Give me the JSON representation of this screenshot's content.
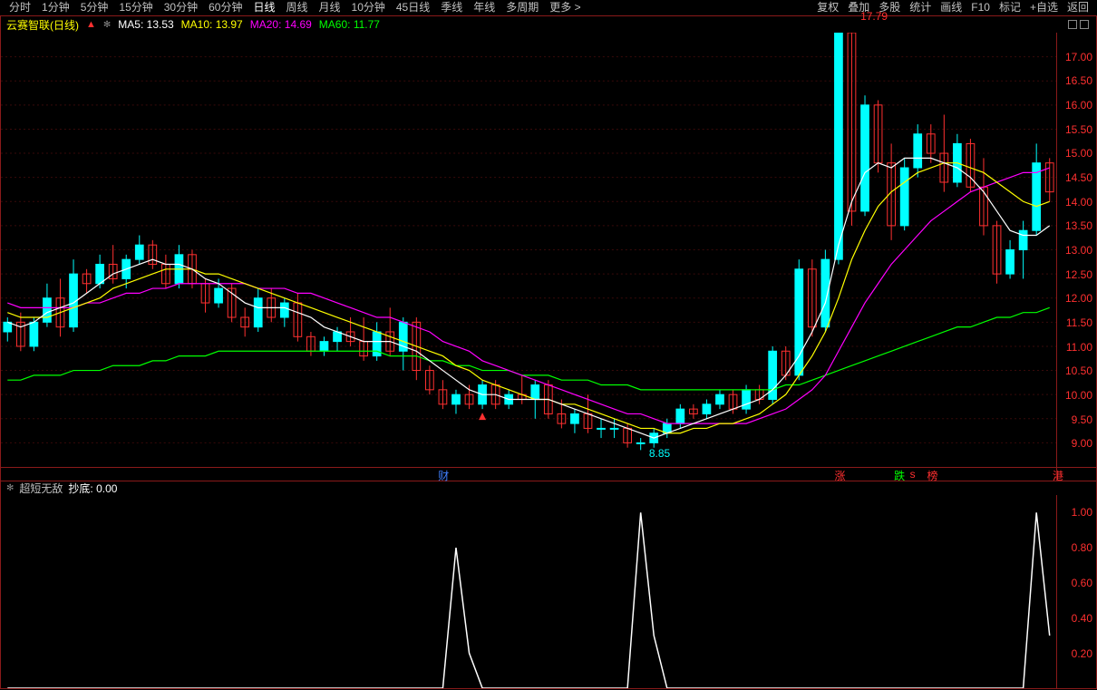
{
  "timeframes": {
    "items": [
      "分时",
      "1分钟",
      "5分钟",
      "15分钟",
      "30分钟",
      "60分钟",
      "日线",
      "周线",
      "月线",
      "10分钟",
      "45日线",
      "季线",
      "年线",
      "多周期",
      "更多 >"
    ],
    "active": "日线"
  },
  "tools": [
    "复权",
    "叠加",
    "多股",
    "统计",
    "画线",
    "F10",
    "标记",
    "+自选",
    "返回"
  ],
  "title": {
    "stock": "云赛智联(日线)",
    "ma5_label": "MA5:",
    "ma5_val": "13.53",
    "ma10_label": "MA10:",
    "ma10_val": "13.97",
    "ma20_label": "MA20:",
    "ma20_val": "14.69",
    "ma60_label": "MA60:",
    "ma60_val": "11.77"
  },
  "chart": {
    "ylim": [
      8.5,
      17.5
    ],
    "yticks": [
      9.0,
      9.5,
      10.0,
      10.5,
      11.0,
      11.5,
      12.0,
      12.5,
      13.0,
      13.5,
      14.0,
      14.5,
      15.0,
      15.5,
      16.0,
      16.5,
      17.0
    ],
    "peak_label": "17.79",
    "low_label": "8.85",
    "grid_color": "#3a0a0a",
    "up_color": "#00ffff",
    "dn_color": "#ff3030",
    "ma5_color": "#ffffff",
    "ma10_color": "#ffff00",
    "ma20_color": "#ff00ff",
    "ma60_color": "#00ff00",
    "candles": [
      {
        "o": 11.3,
        "h": 11.6,
        "l": 11.1,
        "c": 11.5,
        "u": 1
      },
      {
        "o": 11.5,
        "h": 11.7,
        "l": 10.9,
        "c": 11.0,
        "u": 0
      },
      {
        "o": 11.0,
        "h": 11.6,
        "l": 10.9,
        "c": 11.5,
        "u": 1
      },
      {
        "o": 11.5,
        "h": 12.3,
        "l": 11.4,
        "c": 12.0,
        "u": 1
      },
      {
        "o": 12.0,
        "h": 12.4,
        "l": 11.2,
        "c": 11.4,
        "u": 0
      },
      {
        "o": 11.4,
        "h": 12.8,
        "l": 11.3,
        "c": 12.5,
        "u": 1
      },
      {
        "o": 12.5,
        "h": 12.6,
        "l": 12.1,
        "c": 12.3,
        "u": 0
      },
      {
        "o": 12.3,
        "h": 12.9,
        "l": 12.2,
        "c": 12.7,
        "u": 1
      },
      {
        "o": 12.7,
        "h": 13.1,
        "l": 12.3,
        "c": 12.4,
        "u": 0
      },
      {
        "o": 12.4,
        "h": 12.9,
        "l": 12.2,
        "c": 12.8,
        "u": 1
      },
      {
        "o": 12.8,
        "h": 13.3,
        "l": 12.7,
        "c": 13.1,
        "u": 1
      },
      {
        "o": 13.1,
        "h": 13.2,
        "l": 12.6,
        "c": 12.7,
        "u": 0
      },
      {
        "o": 12.7,
        "h": 12.9,
        "l": 12.2,
        "c": 12.3,
        "u": 0
      },
      {
        "o": 12.3,
        "h": 13.1,
        "l": 12.2,
        "c": 12.9,
        "u": 1
      },
      {
        "o": 12.9,
        "h": 13.0,
        "l": 12.2,
        "c": 12.3,
        "u": 0
      },
      {
        "o": 12.3,
        "h": 12.4,
        "l": 11.7,
        "c": 11.9,
        "u": 0
      },
      {
        "o": 11.9,
        "h": 12.4,
        "l": 11.8,
        "c": 12.2,
        "u": 1
      },
      {
        "o": 12.2,
        "h": 12.3,
        "l": 11.5,
        "c": 11.6,
        "u": 0
      },
      {
        "o": 11.6,
        "h": 11.8,
        "l": 11.2,
        "c": 11.4,
        "u": 0
      },
      {
        "o": 11.4,
        "h": 12.2,
        "l": 11.3,
        "c": 12.0,
        "u": 1
      },
      {
        "o": 12.0,
        "h": 12.2,
        "l": 11.5,
        "c": 11.6,
        "u": 0
      },
      {
        "o": 11.6,
        "h": 12.0,
        "l": 11.4,
        "c": 11.9,
        "u": 1
      },
      {
        "o": 11.9,
        "h": 12.1,
        "l": 11.1,
        "c": 11.2,
        "u": 0
      },
      {
        "o": 11.2,
        "h": 11.3,
        "l": 10.8,
        "c": 10.9,
        "u": 0
      },
      {
        "o": 10.9,
        "h": 11.2,
        "l": 10.8,
        "c": 11.1,
        "u": 1
      },
      {
        "o": 11.1,
        "h": 11.4,
        "l": 10.9,
        "c": 11.3,
        "u": 1
      },
      {
        "o": 11.3,
        "h": 11.6,
        "l": 11.0,
        "c": 11.1,
        "u": 0
      },
      {
        "o": 11.1,
        "h": 11.6,
        "l": 10.7,
        "c": 10.8,
        "u": 0
      },
      {
        "o": 10.8,
        "h": 11.5,
        "l": 10.7,
        "c": 11.3,
        "u": 1
      },
      {
        "o": 11.3,
        "h": 11.8,
        "l": 10.8,
        "c": 10.9,
        "u": 0
      },
      {
        "o": 10.9,
        "h": 11.6,
        "l": 10.5,
        "c": 11.5,
        "u": 1
      },
      {
        "o": 11.5,
        "h": 11.6,
        "l": 10.3,
        "c": 10.5,
        "u": 0
      },
      {
        "o": 10.5,
        "h": 10.6,
        "l": 10.0,
        "c": 10.1,
        "u": 0
      },
      {
        "o": 10.1,
        "h": 10.3,
        "l": 9.7,
        "c": 9.8,
        "u": 0
      },
      {
        "o": 9.8,
        "h": 10.1,
        "l": 9.6,
        "c": 10.0,
        "u": 1
      },
      {
        "o": 10.0,
        "h": 10.2,
        "l": 9.7,
        "c": 9.8,
        "u": 0
      },
      {
        "o": 9.8,
        "h": 10.3,
        "l": 9.7,
        "c": 10.2,
        "u": 1
      },
      {
        "o": 10.2,
        "h": 10.3,
        "l": 9.7,
        "c": 9.8,
        "u": 0
      },
      {
        "o": 9.8,
        "h": 10.1,
        "l": 9.7,
        "c": 10.0,
        "u": 1
      },
      {
        "o": 10.0,
        "h": 10.4,
        "l": 9.8,
        "c": 9.9,
        "u": 0
      },
      {
        "o": 9.9,
        "h": 10.3,
        "l": 9.5,
        "c": 10.2,
        "u": 1
      },
      {
        "o": 10.2,
        "h": 10.3,
        "l": 9.5,
        "c": 9.6,
        "u": 0
      },
      {
        "o": 9.6,
        "h": 9.9,
        "l": 9.3,
        "c": 9.4,
        "u": 0
      },
      {
        "o": 9.4,
        "h": 9.7,
        "l": 9.2,
        "c": 9.6,
        "u": 1
      },
      {
        "o": 9.6,
        "h": 10.0,
        "l": 9.2,
        "c": 9.3,
        "u": 0
      },
      {
        "o": 9.3,
        "h": 9.5,
        "l": 9.1,
        "c": 9.3,
        "u": 1
      },
      {
        "o": 9.3,
        "h": 9.5,
        "l": 9.1,
        "c": 9.3,
        "u": 1
      },
      {
        "o": 9.3,
        "h": 9.4,
        "l": 8.9,
        "c": 9.0,
        "u": 0
      },
      {
        "o": 9.0,
        "h": 9.1,
        "l": 8.85,
        "c": 9.0,
        "u": 1
      },
      {
        "o": 9.0,
        "h": 9.3,
        "l": 8.9,
        "c": 9.2,
        "u": 1
      },
      {
        "o": 9.2,
        "h": 9.5,
        "l": 9.1,
        "c": 9.4,
        "u": 1
      },
      {
        "o": 9.4,
        "h": 9.8,
        "l": 9.3,
        "c": 9.7,
        "u": 1
      },
      {
        "o": 9.7,
        "h": 9.8,
        "l": 9.5,
        "c": 9.6,
        "u": 0
      },
      {
        "o": 9.6,
        "h": 9.9,
        "l": 9.5,
        "c": 9.8,
        "u": 1
      },
      {
        "o": 9.8,
        "h": 10.1,
        "l": 9.7,
        "c": 10.0,
        "u": 1
      },
      {
        "o": 10.0,
        "h": 10.1,
        "l": 9.6,
        "c": 9.7,
        "u": 0
      },
      {
        "o": 9.7,
        "h": 10.2,
        "l": 9.6,
        "c": 10.1,
        "u": 1
      },
      {
        "o": 10.1,
        "h": 10.2,
        "l": 9.8,
        "c": 9.9,
        "u": 0
      },
      {
        "o": 9.9,
        "h": 11.0,
        "l": 9.8,
        "c": 10.9,
        "u": 1
      },
      {
        "o": 10.9,
        "h": 11.0,
        "l": 10.3,
        "c": 10.4,
        "u": 0
      },
      {
        "o": 10.4,
        "h": 12.8,
        "l": 10.3,
        "c": 12.6,
        "u": 1
      },
      {
        "o": 12.6,
        "h": 12.8,
        "l": 11.2,
        "c": 11.4,
        "u": 0
      },
      {
        "o": 11.4,
        "h": 13.0,
        "l": 11.3,
        "c": 12.8,
        "u": 1
      },
      {
        "o": 12.8,
        "h": 17.7,
        "l": 12.7,
        "c": 17.5,
        "u": 1
      },
      {
        "o": 17.5,
        "h": 17.79,
        "l": 13.5,
        "c": 13.8,
        "u": 0
      },
      {
        "o": 13.8,
        "h": 16.2,
        "l": 13.7,
        "c": 16.0,
        "u": 1
      },
      {
        "o": 16.0,
        "h": 16.1,
        "l": 14.6,
        "c": 14.8,
        "u": 0
      },
      {
        "o": 14.8,
        "h": 15.2,
        "l": 13.2,
        "c": 13.5,
        "u": 0
      },
      {
        "o": 13.5,
        "h": 14.9,
        "l": 13.4,
        "c": 14.7,
        "u": 1
      },
      {
        "o": 14.7,
        "h": 15.6,
        "l": 14.5,
        "c": 15.4,
        "u": 1
      },
      {
        "o": 15.4,
        "h": 15.6,
        "l": 14.8,
        "c": 15.0,
        "u": 0
      },
      {
        "o": 15.0,
        "h": 15.8,
        "l": 14.2,
        "c": 14.4,
        "u": 0
      },
      {
        "o": 14.4,
        "h": 15.4,
        "l": 14.3,
        "c": 15.2,
        "u": 1
      },
      {
        "o": 15.2,
        "h": 15.3,
        "l": 14.2,
        "c": 14.3,
        "u": 0
      },
      {
        "o": 14.3,
        "h": 14.9,
        "l": 13.3,
        "c": 13.5,
        "u": 0
      },
      {
        "o": 13.5,
        "h": 13.6,
        "l": 12.3,
        "c": 12.5,
        "u": 0
      },
      {
        "o": 12.5,
        "h": 13.2,
        "l": 12.4,
        "c": 13.0,
        "u": 1
      },
      {
        "o": 13.0,
        "h": 13.6,
        "l": 12.4,
        "c": 13.4,
        "u": 1
      },
      {
        "o": 13.4,
        "h": 15.2,
        "l": 13.3,
        "c": 14.8,
        "u": 1
      },
      {
        "o": 14.8,
        "h": 14.9,
        "l": 14.0,
        "c": 14.2,
        "u": 0
      }
    ],
    "ma5": [
      11.5,
      11.4,
      11.5,
      11.7,
      11.8,
      11.9,
      12.1,
      12.3,
      12.5,
      12.6,
      12.7,
      12.8,
      12.7,
      12.7,
      12.6,
      12.4,
      12.3,
      12.1,
      11.9,
      11.8,
      11.8,
      11.8,
      11.7,
      11.6,
      11.4,
      11.3,
      11.2,
      11.1,
      11.1,
      11.1,
      11.0,
      10.9,
      10.7,
      10.5,
      10.3,
      10.1,
      10.0,
      10.0,
      9.9,
      9.9,
      9.9,
      9.9,
      9.8,
      9.7,
      9.6,
      9.5,
      9.4,
      9.3,
      9.2,
      9.1,
      9.2,
      9.3,
      9.4,
      9.5,
      9.6,
      9.7,
      9.8,
      9.9,
      10.1,
      10.4,
      10.8,
      11.3,
      11.9,
      13.1,
      14.0,
      14.6,
      14.8,
      14.7,
      14.9,
      14.9,
      14.9,
      14.8,
      14.7,
      14.5,
      14.2,
      13.8,
      13.4,
      13.3,
      13.3,
      13.5
    ],
    "ma10": [
      11.7,
      11.6,
      11.6,
      11.6,
      11.7,
      11.8,
      11.9,
      12.0,
      12.2,
      12.3,
      12.4,
      12.5,
      12.6,
      12.6,
      12.6,
      12.5,
      12.5,
      12.4,
      12.3,
      12.2,
      12.1,
      12.0,
      11.9,
      11.8,
      11.7,
      11.6,
      11.5,
      11.4,
      11.3,
      11.2,
      11.1,
      11.0,
      10.9,
      10.8,
      10.6,
      10.5,
      10.3,
      10.2,
      10.1,
      10.0,
      9.9,
      9.9,
      9.8,
      9.8,
      9.7,
      9.6,
      9.5,
      9.4,
      9.3,
      9.3,
      9.2,
      9.2,
      9.3,
      9.3,
      9.4,
      9.4,
      9.5,
      9.6,
      9.8,
      10.0,
      10.4,
      10.8,
      11.3,
      12.0,
      12.8,
      13.4,
      13.9,
      14.2,
      14.4,
      14.6,
      14.7,
      14.8,
      14.8,
      14.7,
      14.6,
      14.4,
      14.2,
      14.0,
      13.9,
      14.0
    ],
    "ma20": [
      11.9,
      11.8,
      11.8,
      11.8,
      11.8,
      11.8,
      11.9,
      11.9,
      12.0,
      12.1,
      12.1,
      12.2,
      12.2,
      12.3,
      12.3,
      12.3,
      12.3,
      12.3,
      12.3,
      12.2,
      12.2,
      12.2,
      12.1,
      12.1,
      12.0,
      11.9,
      11.8,
      11.7,
      11.6,
      11.6,
      11.5,
      11.4,
      11.3,
      11.1,
      11.0,
      10.9,
      10.7,
      10.6,
      10.5,
      10.4,
      10.3,
      10.2,
      10.1,
      10.0,
      9.9,
      9.8,
      9.7,
      9.6,
      9.6,
      9.5,
      9.4,
      9.4,
      9.4,
      9.4,
      9.4,
      9.4,
      9.4,
      9.5,
      9.6,
      9.7,
      9.9,
      10.1,
      10.4,
      10.9,
      11.4,
      11.9,
      12.3,
      12.7,
      13.0,
      13.3,
      13.6,
      13.8,
      14.0,
      14.2,
      14.3,
      14.4,
      14.5,
      14.6,
      14.6,
      14.7
    ],
    "ma60": [
      10.3,
      10.3,
      10.4,
      10.4,
      10.4,
      10.5,
      10.5,
      10.5,
      10.6,
      10.6,
      10.6,
      10.7,
      10.7,
      10.8,
      10.8,
      10.8,
      10.9,
      10.9,
      10.9,
      10.9,
      10.9,
      10.9,
      10.9,
      10.9,
      10.9,
      10.9,
      10.9,
      10.9,
      10.9,
      10.8,
      10.8,
      10.8,
      10.7,
      10.7,
      10.6,
      10.6,
      10.5,
      10.5,
      10.5,
      10.4,
      10.4,
      10.4,
      10.3,
      10.3,
      10.3,
      10.2,
      10.2,
      10.2,
      10.1,
      10.1,
      10.1,
      10.1,
      10.1,
      10.1,
      10.1,
      10.1,
      10.1,
      10.1,
      10.1,
      10.2,
      10.2,
      10.3,
      10.4,
      10.5,
      10.6,
      10.7,
      10.8,
      10.9,
      11.0,
      11.1,
      11.2,
      11.3,
      11.4,
      11.4,
      11.5,
      11.6,
      11.6,
      11.7,
      11.7,
      11.8
    ]
  },
  "markers": [
    {
      "x": 33,
      "text": "财",
      "color": "#4080ff"
    },
    {
      "x": 63,
      "text": "涨",
      "color": "#ff3030"
    },
    {
      "x": 67.5,
      "text": "跌",
      "color": "#00ff00"
    },
    {
      "x": 68.5,
      "text": "s",
      "color": "#ff3030"
    },
    {
      "x": 70,
      "text": "榜",
      "color": "#ff3030"
    },
    {
      "x": 79.5,
      "text": "港",
      "color": "#ff3030"
    }
  ],
  "indicator": {
    "title_a": "超短无敌",
    "title_b": "抄底:",
    "title_val": "0.00",
    "ylim": [
      0,
      1.1
    ],
    "yticks": [
      0.2,
      0.4,
      0.6,
      0.8,
      1.0
    ],
    "series": [
      0,
      0,
      0,
      0,
      0,
      0,
      0,
      0,
      0,
      0,
      0,
      0,
      0,
      0,
      0,
      0,
      0,
      0,
      0,
      0,
      0,
      0,
      0,
      0,
      0,
      0,
      0,
      0,
      0,
      0,
      0,
      0,
      0,
      0,
      0.8,
      0.2,
      0,
      0,
      0,
      0,
      0,
      0,
      0,
      0,
      0,
      0,
      0,
      0,
      1.0,
      0.3,
      0,
      0,
      0,
      0,
      0,
      0,
      0,
      0,
      0,
      0,
      0,
      0,
      0,
      0,
      0,
      0,
      0,
      0,
      0,
      0,
      0,
      0,
      0,
      0,
      0,
      0,
      0,
      0,
      1.0,
      0.3
    ],
    "line_color": "#ffffff"
  },
  "arrow_marker": {
    "x": 36,
    "color": "#ff3030"
  }
}
